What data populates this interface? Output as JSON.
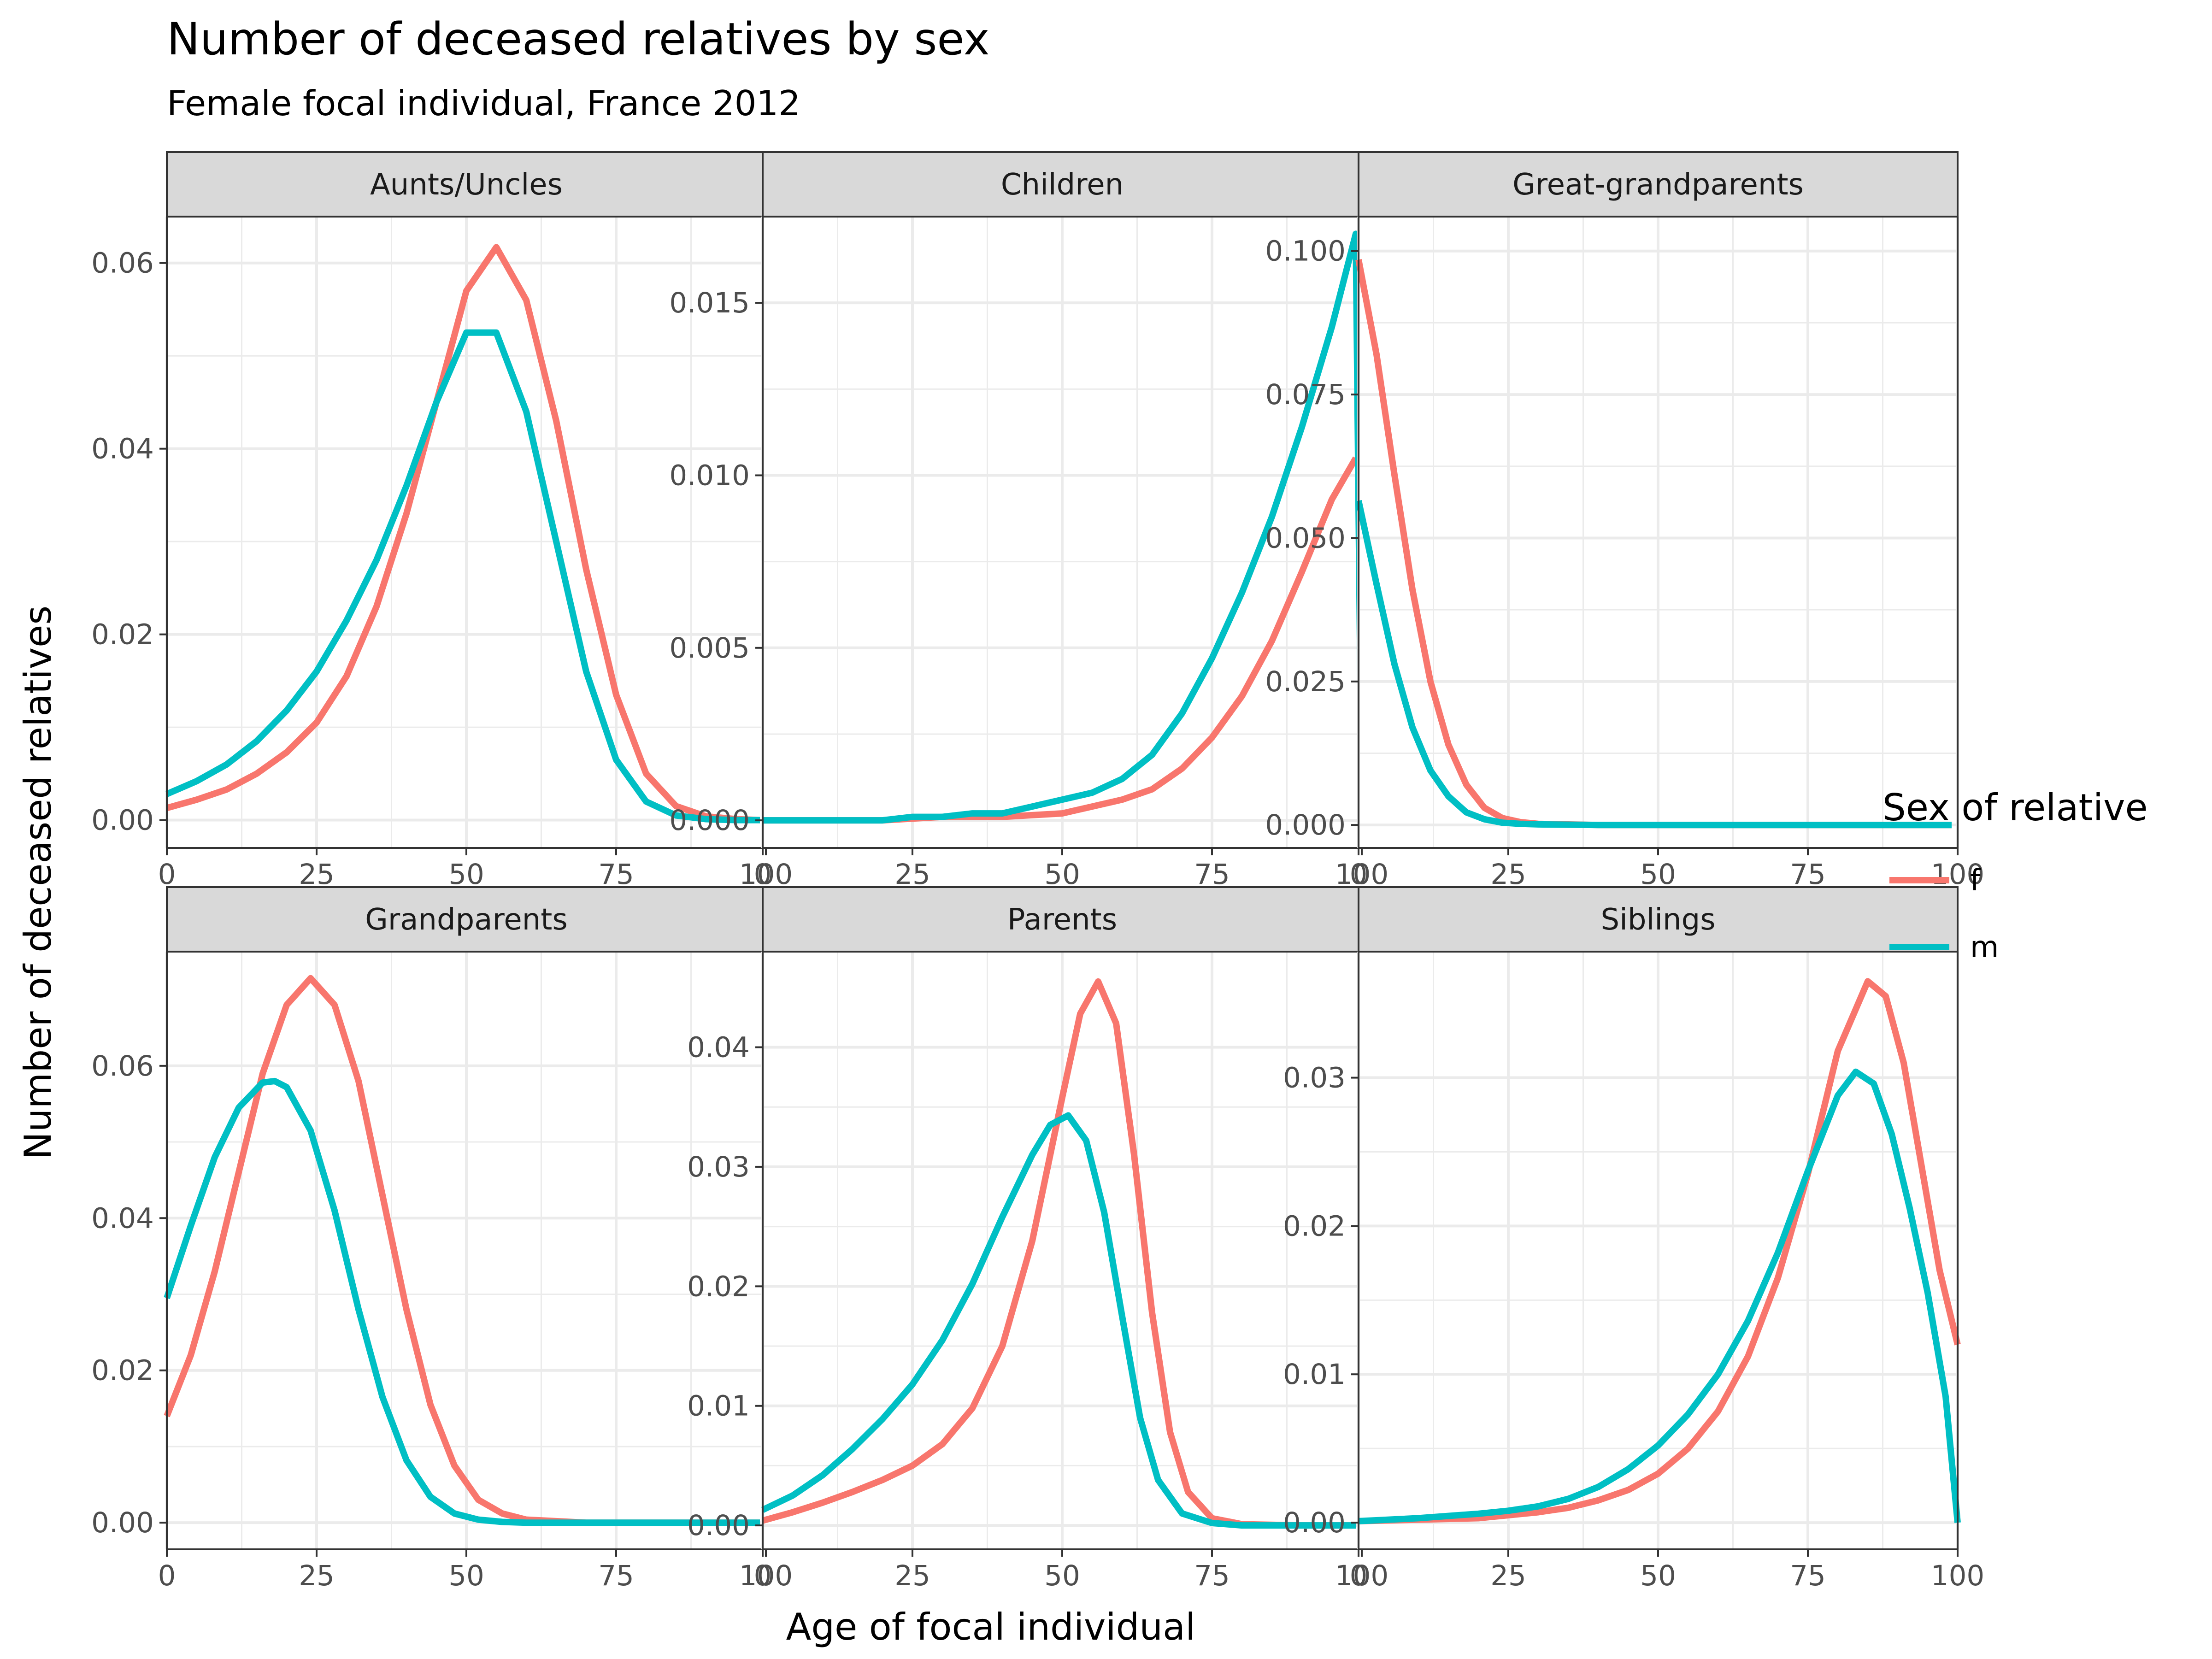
{
  "title": "Number of deceased relatives by sex",
  "subtitle": "Female focal individual, France 2012",
  "xlabel": "Age of focal individual",
  "ylabel": "Number of deceased relatives",
  "legend": {
    "title": "Sex of relative",
    "placement": "right",
    "items": [
      {
        "label": "f",
        "color": "#F8766D"
      },
      {
        "label": "m",
        "color": "#00BFC4"
      }
    ]
  },
  "chart_data": [
    {
      "type": "line",
      "panel": "Aunts/Uncles",
      "xlim": [
        0,
        100
      ],
      "ylim": [
        -0.003,
        0.065
      ],
      "x_ticks": [
        "0",
        "25",
        "50",
        "75",
        "100"
      ],
      "x_tick_values": [
        0,
        25,
        50,
        75,
        100
      ],
      "y_ticks": [
        "0.00",
        "0.02",
        "0.04",
        "0.06"
      ],
      "y_tick_values": [
        0,
        0.02,
        0.04,
        0.06
      ],
      "grid": true,
      "series": [
        {
          "name": "f",
          "color": "#F8766D",
          "x": [
            0,
            5,
            10,
            15,
            20,
            25,
            30,
            35,
            40,
            45,
            50,
            55,
            60,
            65,
            70,
            75,
            80,
            85,
            90,
            95,
            99
          ],
          "y": [
            0.0013,
            0.0022,
            0.0033,
            0.005,
            0.0073,
            0.0105,
            0.0155,
            0.023,
            0.033,
            0.045,
            0.057,
            0.0617,
            0.056,
            0.043,
            0.027,
            0.0135,
            0.005,
            0.0015,
            0.0004,
            0.0001,
            0.0
          ]
        },
        {
          "name": "m",
          "color": "#00BFC4",
          "x": [
            0,
            5,
            10,
            15,
            20,
            25,
            30,
            35,
            40,
            45,
            50,
            55,
            60,
            65,
            70,
            75,
            80,
            85,
            90,
            95,
            99
          ],
          "y": [
            0.0028,
            0.0042,
            0.006,
            0.0085,
            0.0118,
            0.016,
            0.0215,
            0.028,
            0.036,
            0.045,
            0.0525,
            0.0525,
            0.044,
            0.03,
            0.016,
            0.0065,
            0.002,
            0.0005,
            0.0001,
            0.0,
            0.0
          ]
        }
      ]
    },
    {
      "type": "line",
      "panel": "Children",
      "xlim": [
        0,
        100
      ],
      "ylim": [
        -0.0008,
        0.0175
      ],
      "x_ticks": [
        "0",
        "25",
        "50",
        "75",
        "100"
      ],
      "x_tick_values": [
        0,
        25,
        50,
        75,
        100
      ],
      "y_ticks": [
        "0.000",
        "0.005",
        "0.010",
        "0.015"
      ],
      "y_tick_values": [
        0,
        0.005,
        0.01,
        0.015
      ],
      "grid": true,
      "series": [
        {
          "name": "f",
          "color": "#F8766D",
          "x": [
            0,
            10,
            20,
            30,
            40,
            50,
            55,
            60,
            65,
            70,
            75,
            80,
            85,
            90,
            95,
            99
          ],
          "y": [
            0.0,
            0.0,
            0.0,
            0.0001,
            0.0001,
            0.0002,
            0.0004,
            0.0006,
            0.0009,
            0.0015,
            0.0024,
            0.0036,
            0.0052,
            0.0072,
            0.0093,
            0.0105
          ]
        },
        {
          "name": "m",
          "color": "#00BFC4",
          "x": [
            0,
            10,
            20,
            25,
            30,
            35,
            40,
            45,
            50,
            55,
            60,
            65,
            70,
            75,
            80,
            85,
            90,
            95,
            99,
            100
          ],
          "y": [
            0.0,
            0.0,
            0.0,
            0.0001,
            0.0001,
            0.0002,
            0.0002,
            0.0004,
            0.0006,
            0.0008,
            0.0012,
            0.0019,
            0.0031,
            0.0047,
            0.0066,
            0.0088,
            0.0114,
            0.0143,
            0.017,
            0.0
          ]
        }
      ]
    },
    {
      "type": "line",
      "panel": "Great-grandparents",
      "xlim": [
        0,
        100
      ],
      "ylim": [
        -0.004,
        0.106
      ],
      "x_ticks": [
        "0",
        "25",
        "50",
        "75",
        "100"
      ],
      "x_tick_values": [
        0,
        25,
        50,
        75,
        100
      ],
      "y_ticks": [
        "0.000",
        "0.025",
        "0.050",
        "0.075",
        "0.100"
      ],
      "y_tick_values": [
        0,
        0.025,
        0.05,
        0.075,
        0.1
      ],
      "grid": true,
      "series": [
        {
          "name": "f",
          "color": "#F8766D",
          "x": [
            0,
            3,
            6,
            9,
            12,
            15,
            18,
            21,
            24,
            27,
            30,
            40,
            60,
            80,
            99
          ],
          "y": [
            0.0985,
            0.082,
            0.061,
            0.041,
            0.025,
            0.014,
            0.007,
            0.003,
            0.0012,
            0.0005,
            0.0002,
            0.0,
            0.0,
            0.0,
            0.0
          ]
        },
        {
          "name": "m",
          "color": "#00BFC4",
          "x": [
            0,
            3,
            6,
            9,
            12,
            15,
            18,
            21,
            24,
            27,
            30,
            40,
            60,
            80,
            99
          ],
          "y": [
            0.0565,
            0.042,
            0.028,
            0.017,
            0.0095,
            0.005,
            0.0022,
            0.001,
            0.0004,
            0.0002,
            0.0001,
            0.0,
            0.0,
            0.0,
            0.0
          ]
        }
      ]
    },
    {
      "type": "line",
      "panel": "Grandparents",
      "xlim": [
        0,
        100
      ],
      "ylim": [
        -0.0035,
        0.075
      ],
      "x_ticks": [
        "0",
        "25",
        "50",
        "75",
        "100"
      ],
      "x_tick_values": [
        0,
        25,
        50,
        75,
        100
      ],
      "y_ticks": [
        "0.00",
        "0.02",
        "0.04",
        "0.06"
      ],
      "y_tick_values": [
        0,
        0.02,
        0.04,
        0.06
      ],
      "grid": true,
      "series": [
        {
          "name": "f",
          "color": "#F8766D",
          "x": [
            0,
            4,
            8,
            12,
            16,
            20,
            24,
            28,
            32,
            36,
            40,
            44,
            48,
            52,
            56,
            60,
            70,
            80,
            99
          ],
          "y": [
            0.014,
            0.022,
            0.033,
            0.046,
            0.059,
            0.068,
            0.0715,
            0.068,
            0.058,
            0.043,
            0.028,
            0.0155,
            0.0075,
            0.003,
            0.0012,
            0.0004,
            0.0,
            0.0,
            0.0
          ]
        },
        {
          "name": "m",
          "color": "#00BFC4",
          "x": [
            0,
            4,
            8,
            12,
            16,
            18,
            20,
            24,
            28,
            32,
            36,
            40,
            44,
            48,
            52,
            56,
            60,
            70,
            80,
            99
          ],
          "y": [
            0.0295,
            0.039,
            0.048,
            0.0545,
            0.0578,
            0.058,
            0.0572,
            0.0515,
            0.041,
            0.028,
            0.0165,
            0.0082,
            0.0034,
            0.0012,
            0.0004,
            0.0001,
            0.0,
            0.0,
            0.0,
            0.0
          ]
        }
      ]
    },
    {
      "type": "line",
      "panel": "Parents",
      "xlim": [
        0,
        100
      ],
      "ylim": [
        -0.002,
        0.048
      ],
      "x_ticks": [
        "0",
        "25",
        "50",
        "75",
        "100"
      ],
      "x_tick_values": [
        0,
        25,
        50,
        75,
        100
      ],
      "y_ticks": [
        "0.00",
        "0.01",
        "0.02",
        "0.03",
        "0.04"
      ],
      "y_tick_values": [
        0,
        0.01,
        0.02,
        0.03,
        0.04
      ],
      "grid": true,
      "series": [
        {
          "name": "f",
          "color": "#F8766D",
          "x": [
            0,
            5,
            10,
            15,
            20,
            25,
            30,
            35,
            40,
            45,
            50,
            53,
            56,
            59,
            62,
            65,
            68,
            71,
            75,
            80,
            90,
            99
          ],
          "y": [
            0.0004,
            0.0011,
            0.0019,
            0.0028,
            0.0038,
            0.005,
            0.0068,
            0.0098,
            0.015,
            0.0238,
            0.0358,
            0.0428,
            0.0455,
            0.042,
            0.031,
            0.0178,
            0.0078,
            0.0028,
            0.0006,
            0.0001,
            0.0,
            0.0
          ]
        },
        {
          "name": "m",
          "color": "#00BFC4",
          "x": [
            0,
            5,
            10,
            15,
            20,
            25,
            30,
            35,
            40,
            45,
            48,
            51,
            54,
            57,
            60,
            63,
            66,
            70,
            75,
            80,
            90,
            99
          ],
          "y": [
            0.0013,
            0.0025,
            0.0042,
            0.0064,
            0.0089,
            0.0118,
            0.0155,
            0.0202,
            0.0258,
            0.031,
            0.0335,
            0.0343,
            0.0322,
            0.0262,
            0.0175,
            0.009,
            0.0038,
            0.001,
            0.0002,
            0.0,
            0.0,
            0.0
          ]
        }
      ]
    },
    {
      "type": "line",
      "panel": "Siblings",
      "xlim": [
        0,
        100
      ],
      "ylim": [
        -0.0018,
        0.0385
      ],
      "x_ticks": [
        "0",
        "25",
        "50",
        "75",
        "100"
      ],
      "x_tick_values": [
        0,
        25,
        50,
        75,
        100
      ],
      "y_ticks": [
        "0.00",
        "0.01",
        "0.02",
        "0.03"
      ],
      "y_tick_values": [
        0,
        0.01,
        0.02,
        0.03
      ],
      "grid": true,
      "series": [
        {
          "name": "f",
          "color": "#F8766D",
          "x": [
            0,
            10,
            20,
            25,
            30,
            35,
            40,
            45,
            50,
            55,
            60,
            65,
            70,
            75,
            80,
            85,
            88,
            91,
            94,
            97,
            100
          ],
          "y": [
            0.0001,
            0.0002,
            0.0003,
            0.0005,
            0.0007,
            0.001,
            0.0015,
            0.0022,
            0.0033,
            0.005,
            0.0075,
            0.0112,
            0.0165,
            0.0235,
            0.0318,
            0.0365,
            0.0355,
            0.031,
            0.024,
            0.017,
            0.012
          ]
        },
        {
          "name": "m",
          "color": "#00BFC4",
          "x": [
            0,
            10,
            20,
            25,
            30,
            35,
            40,
            45,
            50,
            55,
            60,
            65,
            70,
            75,
            80,
            83,
            86,
            89,
            92,
            95,
            98,
            100
          ],
          "y": [
            0.0001,
            0.0003,
            0.0006,
            0.0008,
            0.0011,
            0.0016,
            0.0024,
            0.0036,
            0.0052,
            0.0073,
            0.01,
            0.0136,
            0.0182,
            0.0237,
            0.0288,
            0.0304,
            0.0296,
            0.0262,
            0.0212,
            0.0155,
            0.0085,
            0.0
          ]
        }
      ]
    }
  ]
}
